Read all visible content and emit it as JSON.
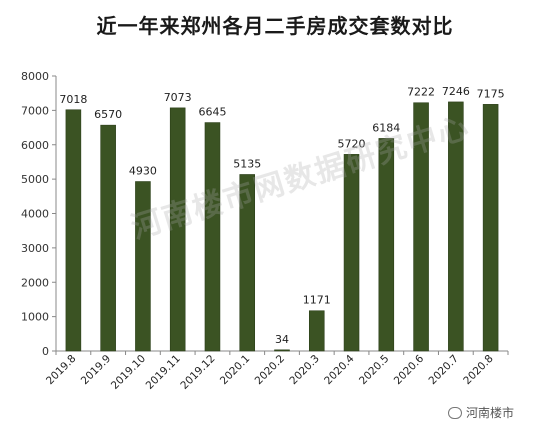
{
  "chart_data": {
    "type": "bar",
    "title": "近一年来郑州各月二手房成交套数对比",
    "categories": [
      "2019.8",
      "2019.9",
      "2019.10",
      "2019.11",
      "2019.12",
      "2020.1",
      "2020.2",
      "2020.3",
      "2020.4",
      "2020.5",
      "2020.6",
      "2020.7",
      "2020.8"
    ],
    "values": [
      7018,
      6570,
      4930,
      7073,
      6645,
      5135,
      34,
      1171,
      5720,
      6184,
      7222,
      7246,
      7175
    ],
    "ylim": [
      0,
      8000
    ],
    "yticks": [
      "0",
      "1000",
      "2000",
      "3000",
      "4000",
      "5000",
      "6000",
      "7000",
      "8000"
    ],
    "xlabel": "",
    "ylabel": "",
    "grid": false,
    "legend": false,
    "bar_color": "#3b5323",
    "bar_border_color": "#2a3d18"
  },
  "watermark": "河南楼市网数据研究中心",
  "corner_logo": "河南楼市"
}
